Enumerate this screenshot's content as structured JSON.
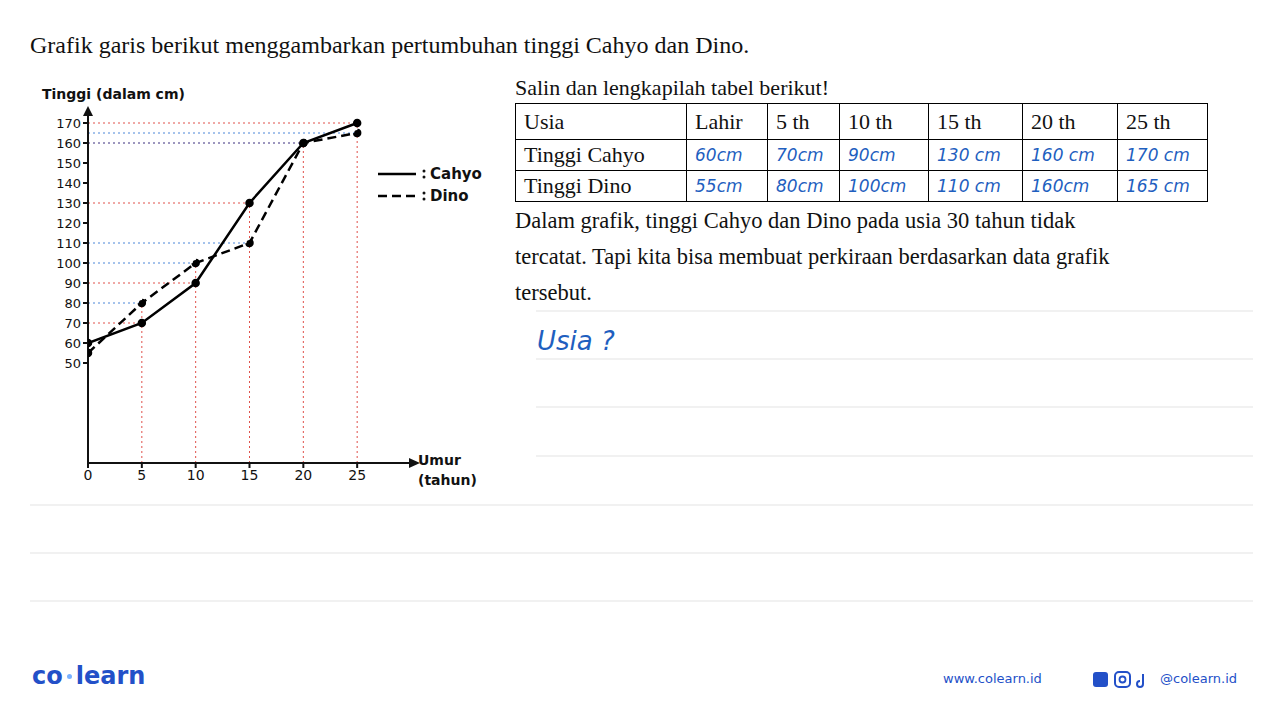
{
  "title": "Grafik garis berikut menggambarkan pertumbuhan tinggi Cahyo dan Dino.",
  "chart_data": {
    "type": "line",
    "xlabel": "Umur (tahun)",
    "ylabel": "Tinggi (dalam cm)",
    "x": [
      0,
      5,
      10,
      15,
      20,
      25
    ],
    "series": [
      {
        "name": "Cahyo",
        "color": "#000000",
        "line_style": "solid",
        "marker": "circle",
        "values": [
          60,
          70,
          90,
          130,
          160,
          170
        ]
      },
      {
        "name": "Dino",
        "color": "#000000",
        "line_style": "dashed",
        "marker": "circle",
        "values": [
          55,
          80,
          100,
          110,
          160,
          165
        ]
      }
    ],
    "xlim": [
      0,
      30
    ],
    "ylim": [
      0,
      175
    ],
    "xticks": [
      0,
      5,
      10,
      15,
      20,
      25
    ],
    "yticks": [
      50,
      60,
      70,
      80,
      90,
      100,
      110,
      120,
      130,
      140,
      150,
      160,
      170
    ],
    "grid": false,
    "legend": "right"
  },
  "table": {
    "instruction": "Salin dan lengkapilah tabel berikut!",
    "header": [
      "Usia",
      "Lahir",
      "5 th",
      "10 th",
      "15 th",
      "20 th",
      "25 th"
    ],
    "rows": [
      [
        "Tinggi Cahyo",
        "60cm",
        "70cm",
        "90cm",
        "130 cm",
        "160 cm",
        "170 cm"
      ],
      [
        "Tinggi Dino",
        "55cm",
        "80cm",
        "100cm",
        "110 cm",
        "160cm",
        "165 cm"
      ]
    ]
  },
  "paragraph": [
    "Dalam grafik, tinggi Cahyo dan Dino pada usia 30 tahun tidak",
    "tercatat. Tapi kita bisa membuat perkiraan berdasarkan data grafik",
    "tersebut."
  ],
  "note": "Usia ?",
  "footer": {
    "logo": [
      "co",
      "learn"
    ],
    "website": "www.colearn.id",
    "social": "@colearn.id"
  }
}
